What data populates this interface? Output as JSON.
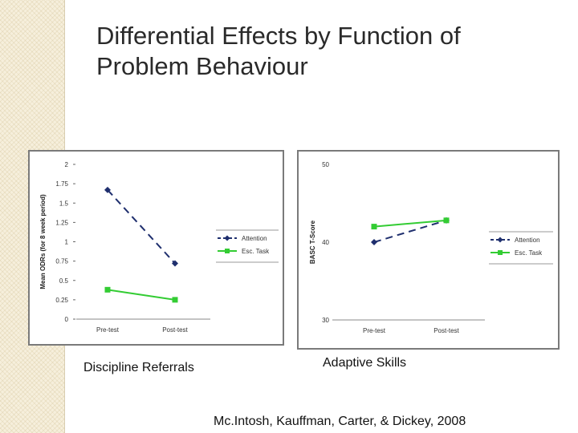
{
  "slide": {
    "title_line1": "Differential Effects by Function of",
    "title_line2": "Problem Behaviour",
    "caption_left": "Discipline Referrals",
    "caption_right": "Adaptive Skills",
    "citation": "Mc.Intosh, Kauffman, Carter, & Dickey, 2008"
  },
  "colors": {
    "attention": "#1f2f6e",
    "esc_task": "#33cc33",
    "gridline": "#cccccc"
  },
  "chart_data": [
    {
      "type": "line",
      "title": "Discipline Referrals",
      "xlabel": "",
      "ylabel": "Mean ODRs (for 8 week period)",
      "categories": [
        "Pre-test",
        "Post-test"
      ],
      "ylim": [
        0,
        2
      ],
      "yticks": [
        0,
        0.25,
        0.5,
        0.75,
        1,
        1.25,
        1.5,
        1.75,
        2
      ],
      "ytick_labels": [
        "0",
        "0.25",
        "0.5",
        "0.75",
        "1",
        "1.25",
        "1.5",
        "1.75",
        "2"
      ],
      "legend_position": "right",
      "series": [
        {
          "name": "Attention",
          "values": [
            1.67,
            0.72
          ],
          "color_key": "attention",
          "dash": true,
          "marker": "diamond"
        },
        {
          "name": "Esc. Task",
          "values": [
            0.38,
            0.25
          ],
          "color_key": "esc_task",
          "dash": false,
          "marker": "square"
        }
      ]
    },
    {
      "type": "line",
      "title": "Adaptive Skills",
      "xlabel": "",
      "ylabel": "BASC T-Score",
      "categories": [
        "Pre-test",
        "Post-test"
      ],
      "ylim": [
        30,
        50
      ],
      "yticks": [
        30,
        40,
        50
      ],
      "ytick_labels": [
        "30",
        "40",
        "50"
      ],
      "legend_position": "right",
      "series": [
        {
          "name": "Attention",
          "values": [
            40.0,
            42.8
          ],
          "color_key": "attention",
          "dash": true,
          "marker": "diamond"
        },
        {
          "name": "Esc. Task",
          "values": [
            42.0,
            42.8
          ],
          "color_key": "esc_task",
          "dash": false,
          "marker": "square"
        }
      ]
    }
  ]
}
